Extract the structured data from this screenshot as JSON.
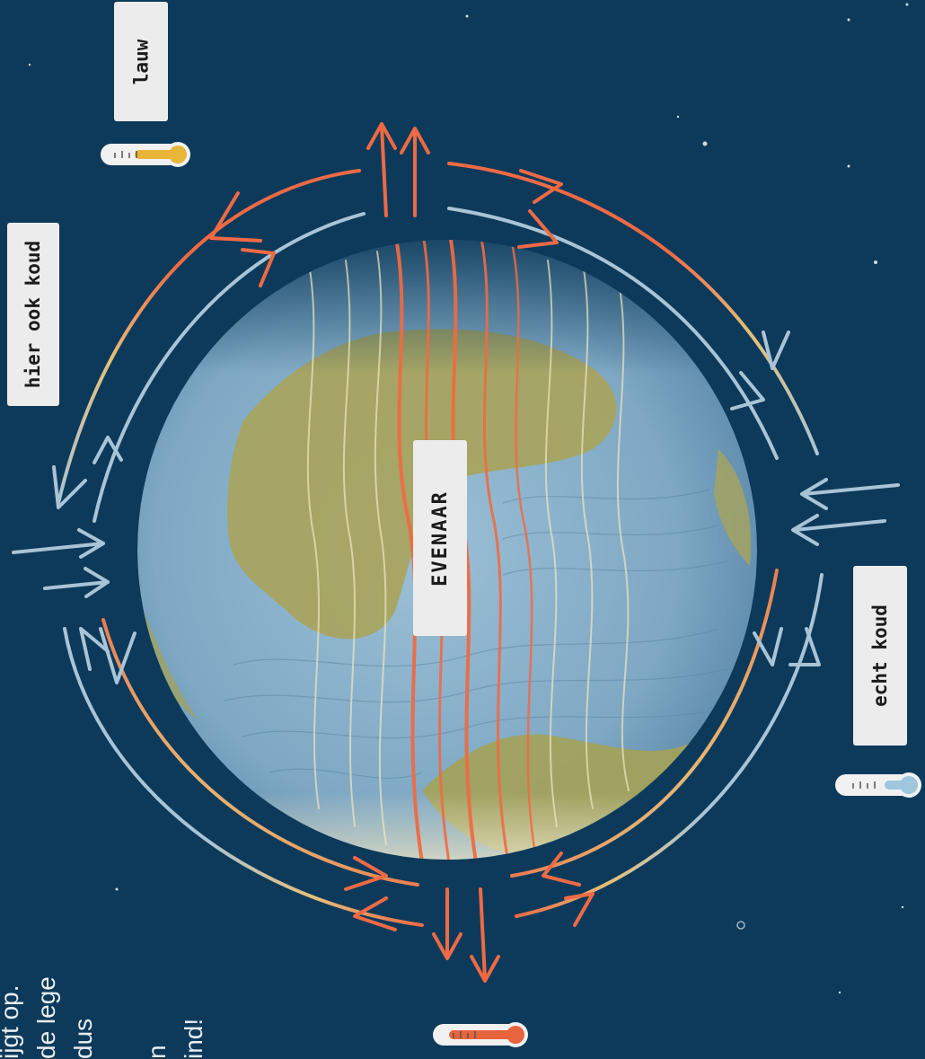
{
  "labels": {
    "lauw": "lauw",
    "hier_ook_koud": "hier ook koud",
    "echt_koud": "echt koud",
    "evenaar": "EVENAAR"
  },
  "side_text_lines": [
    "ijgt op.",
    "de lege",
    "dus",
    "",
    "n",
    "ind!"
  ],
  "colors": {
    "background": "#0d3a5a",
    "warm_arrow": "#ee6a45",
    "cold_arrow": "#a9c4d6",
    "ocean": "#8fb5cf",
    "land": "#a6a25a",
    "thermometer_warm": "#e8643c",
    "thermometer_mild": "#e9b63a",
    "thermometer_cold": "#9ec6de"
  },
  "thermometers": [
    {
      "name": "thermometer-lauw",
      "level": "mild"
    },
    {
      "name": "thermometer-echt-koud",
      "level": "cold"
    },
    {
      "name": "thermometer-warm",
      "level": "warm"
    }
  ]
}
